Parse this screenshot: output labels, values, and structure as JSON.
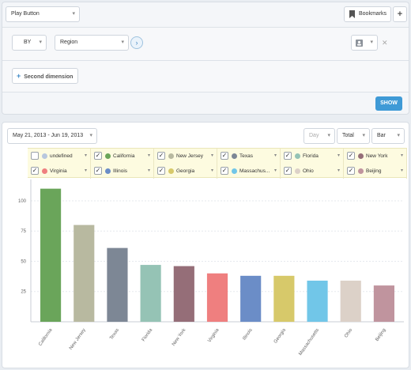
{
  "toolbar": {
    "play_button_select": "Play Button",
    "bookmarks_label": "Bookmarks",
    "add_label": "+"
  },
  "query": {
    "by_select": "BY",
    "region_select": "Region",
    "second_dimension_label": "Second dimension",
    "show_label": "SHOW"
  },
  "chart_header": {
    "date_range": "May 21, 2013 - Jun 19, 2013",
    "granularity": "Day",
    "metric": "Total",
    "chart_type": "Bar"
  },
  "legend": [
    {
      "label": "undefined",
      "color": "#b8c7de",
      "checked": false
    },
    {
      "label": "California",
      "color": "#6aa55a",
      "checked": true
    },
    {
      "label": "New Jersey",
      "color": "#b8b9a0",
      "checked": true
    },
    {
      "label": "Texas",
      "color": "#7d8795",
      "checked": true
    },
    {
      "label": "Florida",
      "color": "#95c3b5",
      "checked": true
    },
    {
      "label": "New York",
      "color": "#956e78",
      "checked": true
    },
    {
      "label": "Virginia",
      "color": "#ef7f7f",
      "checked": true
    },
    {
      "label": "Illinois",
      "color": "#6b8dc7",
      "checked": true
    },
    {
      "label": "Georgia",
      "color": "#d7c96a",
      "checked": true
    },
    {
      "label": "Massachus...",
      "color": "#71c6e8",
      "checked": true
    },
    {
      "label": "Ohio",
      "color": "#dcd1c8",
      "checked": true
    },
    {
      "label": "Beijing",
      "color": "#c0949e",
      "checked": true
    }
  ],
  "chart_data": {
    "type": "bar",
    "categories": [
      "California",
      "New Jersey",
      "Texas",
      "Florida",
      "New York",
      "Virginia",
      "Illinois",
      "Georgia",
      "Massachusetts",
      "Ohio",
      "Beijing"
    ],
    "values": [
      110,
      80,
      61,
      47,
      46,
      40,
      38,
      38,
      34,
      34,
      30
    ],
    "colors": [
      "#6aa55a",
      "#b8b9a0",
      "#7d8795",
      "#95c3b5",
      "#956e78",
      "#ef7f7f",
      "#6b8dc7",
      "#d7c96a",
      "#71c6e8",
      "#dcd1c8",
      "#c0949e"
    ],
    "yticks": [
      25,
      50,
      75,
      100
    ],
    "ylim": [
      0,
      115
    ],
    "grid": true
  }
}
